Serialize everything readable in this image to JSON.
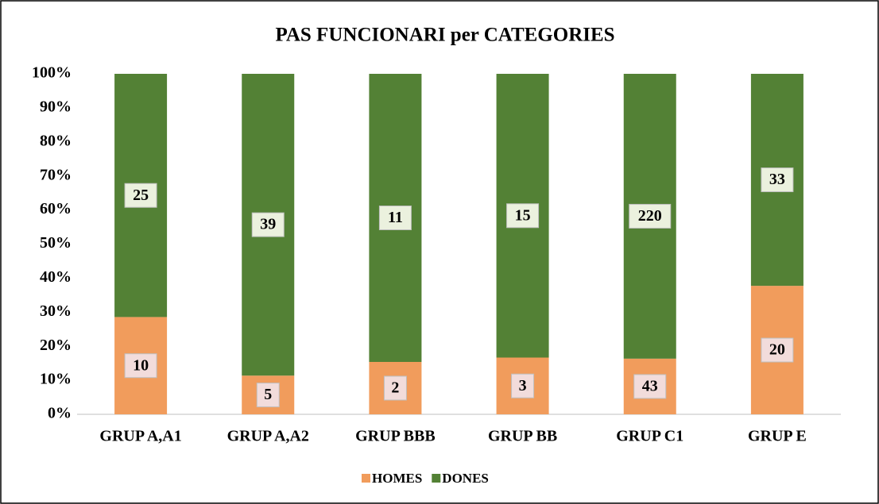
{
  "chart_data": {
    "type": "bar",
    "stacked": "percent",
    "title": "PAS FUNCIONARI per CATEGORIES",
    "categories": [
      "GRUP A,A1",
      "GRUP A,A2",
      "GRUP BBB",
      "GRUP BB",
      "GRUP C1",
      "GRUP E"
    ],
    "series": [
      {
        "name": "HOMES",
        "color": "#f19c5c",
        "label_color": "#f2dcdb",
        "values": [
          10,
          5,
          2,
          3,
          43,
          20
        ]
      },
      {
        "name": "DONES",
        "color": "#538135",
        "label_color": "#ebf1de",
        "values": [
          25,
          39,
          11,
          15,
          220,
          33
        ]
      }
    ],
    "ylim": [
      0,
      100
    ],
    "yticks": [
      {
        "value": 0,
        "label": "0%"
      },
      {
        "value": 10,
        "label": "10%"
      },
      {
        "value": 20,
        "label": "20%"
      },
      {
        "value": 30,
        "label": "30%"
      },
      {
        "value": 40,
        "label": "40%"
      },
      {
        "value": 50,
        "label": "50%"
      },
      {
        "value": 60,
        "label": "60%"
      },
      {
        "value": 70,
        "label": "70%"
      },
      {
        "value": 80,
        "label": "80%"
      },
      {
        "value": 90,
        "label": "90%"
      },
      {
        "value": 100,
        "label": "100%"
      }
    ],
    "legend": "bottom"
  }
}
